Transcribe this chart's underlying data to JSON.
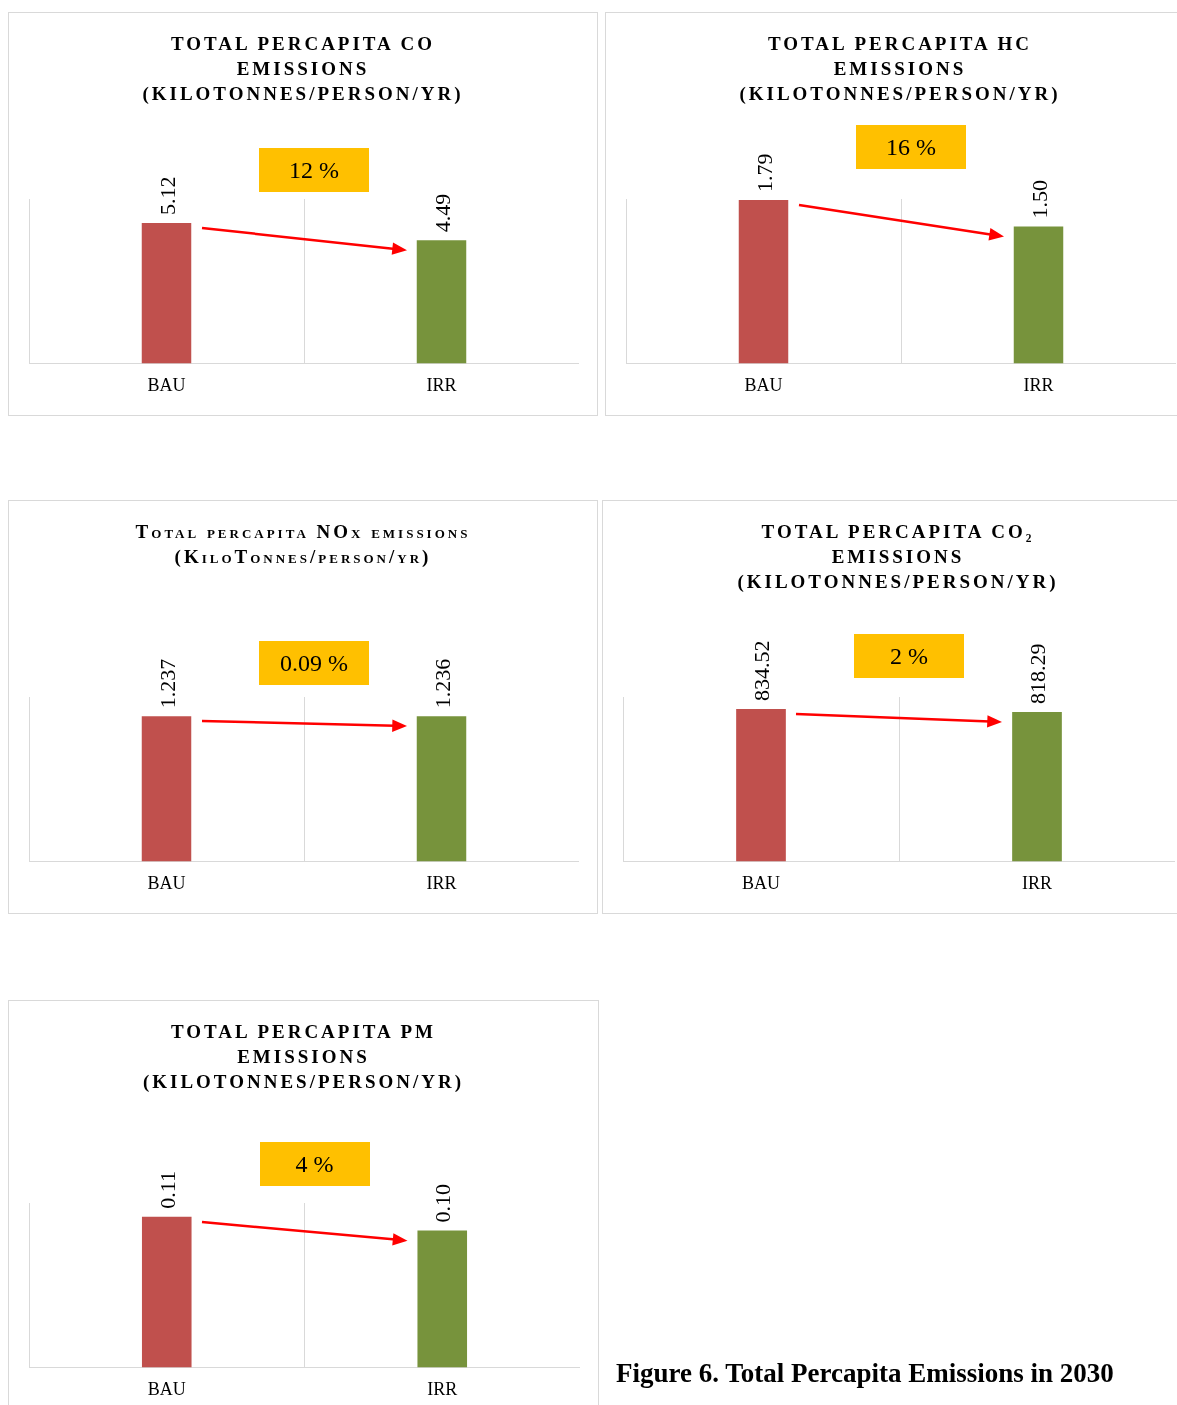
{
  "chart_data": [
    {
      "type": "bar",
      "title": "TOTAL PERCAPITA CO EMISSIONS (KILOTONNES/PERSON/YR)",
      "categories": [
        "BAU",
        "IRR"
      ],
      "values": [
        5.12,
        4.49
      ],
      "colors": [
        "#c0504d",
        "#77933c"
      ],
      "data_labels": true,
      "grid": "x",
      "tick_labels": "x",
      "annotations": [
        "12 %"
      ]
    },
    {
      "type": "bar",
      "title": "TOTAL PERCAPITA HC EMISSIONS (KILOTONNES/PERSON/YR)",
      "categories": [
        "BAU",
        "IRR"
      ],
      "values": [
        1.79,
        1.5
      ],
      "value_labels": [
        "1.79",
        "1.50"
      ],
      "colors": [
        "#c0504d",
        "#77933c"
      ],
      "grid": "x",
      "tick_labels": "x",
      "annotations": [
        "16 %"
      ]
    },
    {
      "type": "bar",
      "title": "Total percapita NOx emissions (KiloTonnes/person/yr)",
      "categories": [
        "BAU",
        "IRR"
      ],
      "values": [
        1.237,
        1.236
      ],
      "colors": [
        "#c0504d",
        "#77933c"
      ],
      "data_labels": true,
      "grid": "x",
      "tick_labels": "x",
      "annotations": [
        "0.09 %"
      ]
    },
    {
      "type": "bar",
      "title": "TOTAL PERCAPITA CO₂ EMISSIONS (KILOTONNES/PERSON/YR)",
      "categories": [
        "BAU",
        "IRR"
      ],
      "values": [
        834.52,
        818.29
      ],
      "colors": [
        "#c0504d",
        "#77933c"
      ],
      "data_labels": true,
      "grid": "x",
      "tick_labels": "x",
      "annotations": [
        "2 %"
      ]
    },
    {
      "type": "bar",
      "title": "TOTAL PERCAPITA PM EMISSIONS (KILOTONNES/PERSON/YR)",
      "categories": [
        "BAU",
        "IRR"
      ],
      "values": [
        0.11,
        0.1
      ],
      "value_labels": [
        "0.11",
        "0.10"
      ],
      "colors": [
        "#c0504d",
        "#77933c"
      ],
      "grid": "x",
      "tick_labels": "x",
      "annotations": [
        "4 %",
        "Figure 6. Total Percapita Emissions in 2030"
      ]
    }
  ]
}
